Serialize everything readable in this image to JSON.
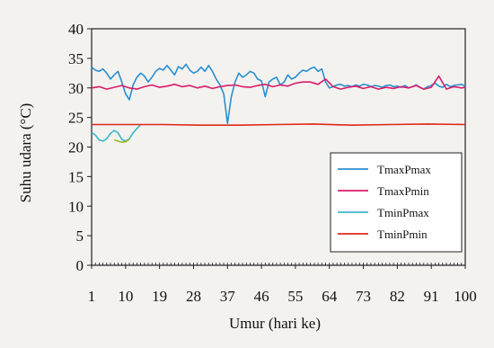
{
  "chart_data": {
    "type": "line",
    "title": "",
    "xlabel": "Umur (hari ke)",
    "ylabel": "Suhu udara (°C)",
    "ylim": [
      0,
      40
    ],
    "xlim": [
      1,
      100
    ],
    "x_ticks": [
      1,
      10,
      19,
      28,
      37,
      46,
      55,
      64,
      73,
      82,
      91,
      100
    ],
    "y_ticks": [
      0,
      5,
      10,
      15,
      20,
      25,
      30,
      35,
      40
    ],
    "grid": false,
    "legend_position": "right",
    "series": [
      {
        "name": "TmaxPmax",
        "color": "#2a8fd0",
        "x": [
          1,
          2,
          3,
          4,
          5,
          6,
          7,
          8,
          9,
          10,
          11,
          12,
          13,
          14,
          15,
          16,
          17,
          18,
          19,
          20,
          21,
          22,
          23,
          24,
          25,
          26,
          27,
          28,
          29,
          30,
          31,
          32,
          33,
          34,
          35,
          36,
          37,
          38,
          39,
          40,
          41,
          42,
          43,
          44,
          45,
          46,
          47,
          48,
          49,
          50,
          51,
          52,
          53,
          54,
          55,
          56,
          57,
          58,
          59,
          60,
          61,
          62,
          63,
          64,
          65,
          66,
          67,
          68,
          69,
          70,
          71,
          72,
          73,
          74,
          75,
          76,
          77,
          78,
          79,
          80,
          81,
          82,
          83,
          84,
          85,
          86,
          87,
          88,
          89,
          90,
          91,
          92,
          93,
          94,
          95,
          96,
          97,
          98,
          99,
          100
        ],
        "y": [
          33.5,
          33,
          32.8,
          33.2,
          32.5,
          31.5,
          32.2,
          32.8,
          31,
          29,
          28,
          30.5,
          31.8,
          32.5,
          32,
          31,
          31.8,
          32.8,
          33.3,
          33,
          33.8,
          33,
          32.2,
          33.6,
          33.2,
          34,
          33,
          32.5,
          32.8,
          33.5,
          32.8,
          33.8,
          32.8,
          31.5,
          30.5,
          29,
          24,
          28.5,
          31,
          32.5,
          31.8,
          32.2,
          32.8,
          32.5,
          31.5,
          31.2,
          28.5,
          31,
          31.5,
          31.8,
          30.5,
          31,
          32.2,
          31.5,
          31.8,
          32.5,
          33,
          32.8,
          33.3,
          33.5,
          32.8,
          33.2,
          31,
          30,
          30.2,
          30.5,
          30.6,
          30.3,
          30.4,
          30.2,
          30.5,
          30.3,
          30.6,
          30.5,
          30.2,
          30.4,
          30.3,
          30.1,
          30.4,
          30.5,
          30.2,
          30.3,
          30.1,
          30.4,
          30,
          30.2,
          30.5,
          30.1,
          29.8,
          30.2,
          30.4,
          30.8,
          30.3,
          30.1,
          30.6,
          30.2,
          30.4,
          30.5,
          30.6,
          30.3
        ]
      },
      {
        "name": "TmaxPmin",
        "color": "#d81c6a",
        "x": [
          1,
          3,
          5,
          7,
          9,
          11,
          13,
          15,
          17,
          19,
          21,
          23,
          25,
          27,
          29,
          31,
          33,
          35,
          37,
          39,
          41,
          43,
          45,
          47,
          49,
          51,
          53,
          55,
          57,
          59,
          61,
          63,
          65,
          67,
          69,
          71,
          73,
          75,
          77,
          79,
          81,
          83,
          85,
          87,
          89,
          91,
          93,
          95,
          97,
          99,
          100
        ],
        "y": [
          30,
          30.2,
          29.8,
          30.1,
          30.4,
          30,
          29.8,
          30.2,
          30.5,
          30.1,
          30.3,
          30.6,
          30.2,
          30.4,
          30,
          30.3,
          29.9,
          30.2,
          30.4,
          30.5,
          30.2,
          30.1,
          30.4,
          30.6,
          30.2,
          30.5,
          30.3,
          30.8,
          31,
          31,
          30.6,
          31.5,
          30.2,
          29.8,
          30.1,
          30.3,
          29.9,
          30.2,
          29.8,
          30.1,
          29.9,
          30.2,
          30,
          30.4,
          29.8,
          30.1,
          32,
          29.8,
          30.2,
          30,
          30.1
        ]
      },
      {
        "name": "TminPmax",
        "color": "#3ab8c8",
        "x": [
          1,
          2,
          3,
          4,
          5,
          6,
          7,
          8,
          9,
          10,
          11,
          12,
          13,
          14
        ],
        "y": [
          22.5,
          22,
          21.2,
          21,
          21.4,
          22.3,
          22.8,
          22.4,
          21.3,
          21,
          21.4,
          22.4,
          23.1,
          23.8
        ]
      },
      {
        "name": "TminPmin",
        "color": "#e02818",
        "x": [
          1,
          10,
          20,
          30,
          40,
          50,
          60,
          70,
          80,
          90,
          100
        ],
        "y": [
          23.8,
          23.8,
          23.8,
          23.7,
          23.7,
          23.8,
          23.9,
          23.7,
          23.8,
          23.9,
          23.8
        ]
      }
    ],
    "extra_marks": [
      {
        "color": "#9bb81c",
        "x": [
          7,
          8,
          9,
          10,
          11
        ],
        "y": [
          21.2,
          21,
          20.8,
          20.9,
          21.3
        ]
      }
    ]
  }
}
